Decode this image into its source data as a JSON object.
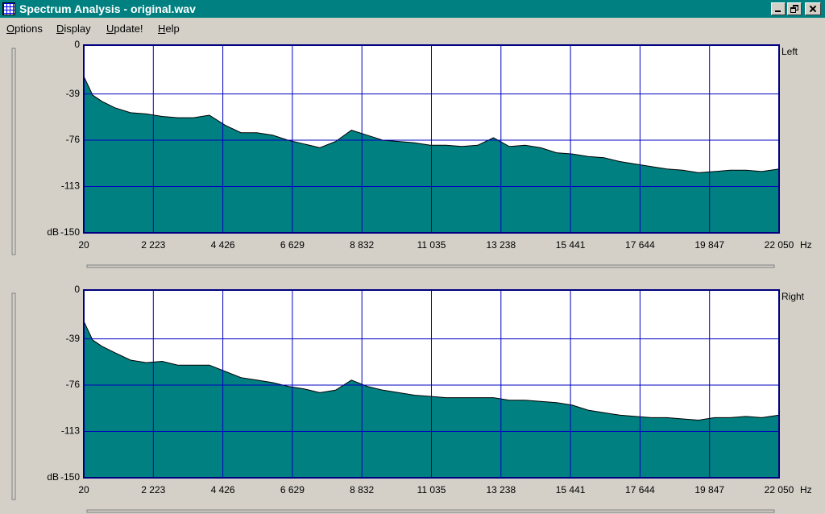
{
  "window": {
    "title": "Spectrum Analysis - original.wav"
  },
  "menu": [
    "Options",
    "Display",
    "Update!",
    "Help"
  ],
  "chart_data": [
    {
      "type": "area",
      "x": [
        20,
        300,
        600,
        1000,
        1500,
        2000,
        2500,
        3000,
        3500,
        4000,
        4500,
        5000,
        5500,
        6000,
        6500,
        7000,
        7500,
        8000,
        8500,
        9000,
        9500,
        10000,
        10500,
        11000,
        11500,
        12000,
        12500,
        13000,
        13500,
        14000,
        14500,
        15000,
        15500,
        16000,
        16500,
        17000,
        17500,
        18000,
        18500,
        19000,
        19500,
        20000,
        20500,
        21000,
        21500,
        22050
      ],
      "series": [
        {
          "name": "Left",
          "color": "#008080",
          "values": [
            -25,
            -40,
            -45,
            -50,
            -54,
            -55,
            -57,
            -58,
            -58,
            -56,
            -64,
            -70,
            -70,
            -72,
            -76,
            -79,
            -82,
            -77,
            -68,
            -72,
            -76,
            -77,
            -78,
            -80,
            -80,
            -81,
            -80,
            -74,
            -81,
            -80,
            -82,
            -86,
            -87,
            -89,
            -90,
            -93,
            -95,
            -97,
            -99,
            -100,
            -102,
            -101,
            -100,
            -100,
            -101,
            -99
          ]
        }
      ],
      "xlim": [
        20,
        22050
      ],
      "xticks": [
        20,
        {
          "value": 2223,
          "label": "2 223"
        },
        {
          "value": 4426,
          "label": "4 426"
        },
        {
          "value": 6629,
          "label": "6 629"
        },
        {
          "value": 8832,
          "label": "8 832"
        },
        {
          "value": 11035,
          "label": "11 035"
        },
        {
          "value": 13238,
          "label": "13 238"
        },
        {
          "value": 15441,
          "label": "15 441"
        },
        {
          "value": 17644,
          "label": "17 644"
        },
        {
          "value": 19847,
          "label": "19 847"
        },
        {
          "value": 22050,
          "label": "22 050"
        }
      ],
      "x_unit": "Hz",
      "ylim": [
        -150,
        0
      ],
      "yticks": [
        0,
        -39,
        -76,
        -113,
        -150
      ],
      "y_unit": "dB",
      "grid": true
    },
    {
      "type": "area",
      "x": [
        20,
        300,
        600,
        1000,
        1500,
        2000,
        2500,
        3000,
        3500,
        4000,
        4500,
        5000,
        5500,
        6000,
        6500,
        7000,
        7500,
        8000,
        8500,
        9000,
        9500,
        10000,
        10500,
        11000,
        11500,
        12000,
        12500,
        13000,
        13500,
        14000,
        14500,
        15000,
        15500,
        16000,
        16500,
        17000,
        17500,
        18000,
        18500,
        19000,
        19500,
        20000,
        20500,
        21000,
        21500,
        22050
      ],
      "series": [
        {
          "name": "Right",
          "color": "#008080",
          "values": [
            -25,
            -40,
            -45,
            -50,
            -56,
            -58,
            -57,
            -60,
            -60,
            -60,
            -65,
            -70,
            -72,
            -74,
            -77,
            -79,
            -82,
            -80,
            -72,
            -77,
            -80,
            -82,
            -84,
            -85,
            -86,
            -86,
            -86,
            -86,
            -88,
            -88,
            -89,
            -90,
            -92,
            -96,
            -98,
            -100,
            -101,
            -102,
            -102,
            -103,
            -104,
            -102,
            -102,
            -101,
            -102,
            -100
          ]
        }
      ],
      "xlim": [
        20,
        22050
      ],
      "xticks": [
        20,
        {
          "value": 2223,
          "label": "2 223"
        },
        {
          "value": 4426,
          "label": "4 426"
        },
        {
          "value": 6629,
          "label": "6 629"
        },
        {
          "value": 8832,
          "label": "8 832"
        },
        {
          "value": 11035,
          "label": "11 035"
        },
        {
          "value": 13238,
          "label": "13 238"
        },
        {
          "value": 15441,
          "label": "15 441"
        },
        {
          "value": 17644,
          "label": "17 644"
        },
        {
          "value": 19847,
          "label": "19 847"
        },
        {
          "value": 22050,
          "label": "22 050"
        }
      ],
      "x_unit": "Hz",
      "ylim": [
        -150,
        0
      ],
      "yticks": [
        0,
        -39,
        -76,
        -113,
        -150
      ],
      "y_unit": "dB",
      "grid": true
    }
  ]
}
